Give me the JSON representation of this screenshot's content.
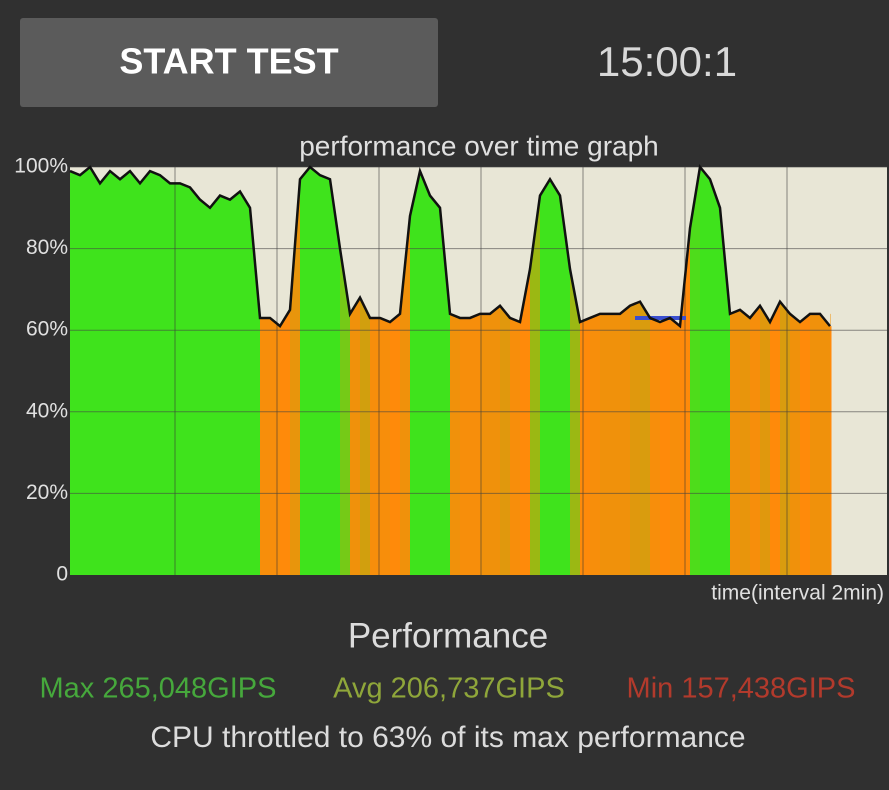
{
  "button": {
    "label": "START TEST"
  },
  "timer": "15:00:1",
  "chart_data": {
    "type": "area",
    "title": "performance over time graph",
    "x_label": "time(interval 2min)",
    "values": [
      99,
      98,
      100,
      96,
      99,
      97,
      99,
      96,
      99,
      98,
      96,
      96,
      95,
      92,
      90,
      93,
      92,
      94,
      90,
      63,
      63,
      61,
      65,
      97,
      100,
      98,
      97,
      80,
      64,
      68,
      63,
      63,
      62,
      64,
      88,
      99,
      93,
      90,
      64,
      63,
      63,
      64,
      64,
      66,
      63,
      62,
      75,
      93,
      97,
      93,
      75,
      62,
      63,
      64,
      64,
      64,
      66,
      67,
      63,
      62,
      63,
      61,
      85,
      100,
      97,
      90,
      64,
      65,
      63,
      66,
      62,
      67,
      64,
      62,
      64,
      64,
      61
    ],
    "ylim": [
      0,
      100
    ],
    "yticks": [
      0,
      {
        "value": 20,
        "label": "20%"
      },
      {
        "value": 40,
        "label": "40%"
      },
      {
        "value": 60,
        "label": "60%"
      },
      {
        "value": 80,
        "label": "80%"
      },
      {
        "value": 100,
        "label": "100%"
      }
    ],
    "grid": true,
    "line_color": "#111111",
    "high_color": "#3fe31c",
    "low_color": "#ff8a0a",
    "reference_value": 63,
    "reference_color": "#3a4fd0"
  },
  "stats": {
    "heading": "Performance",
    "max": "Max 265,048GIPS",
    "avg": "Avg 206,737GIPS",
    "min": "Min 157,438GIPS",
    "summary": "CPU throttled to 63% of its max performance"
  }
}
